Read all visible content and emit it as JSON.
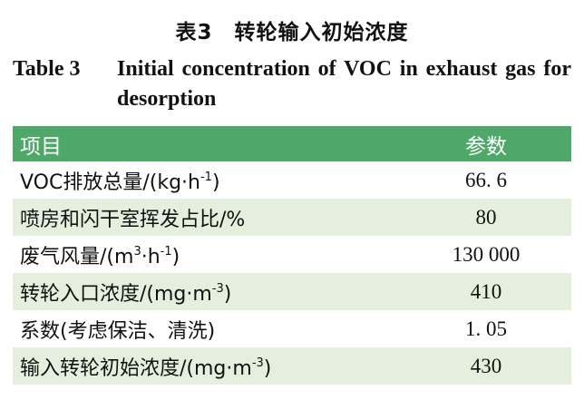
{
  "caption": {
    "cn": "表3　转轮输入初始浓度",
    "en_number": "Table 3",
    "en_title": "Initial concentration of VOC in exhaust gas for desorption"
  },
  "table": {
    "headers": [
      "项目",
      "参数"
    ],
    "rows": [
      {
        "item": "VOC排放总量/(kg·h",
        "sup": "-1",
        "tail": ")",
        "value": "66. 6"
      },
      {
        "item": "喷房和闪干室挥发占比/%",
        "sup": "",
        "tail": "",
        "value": "80"
      },
      {
        "item": "废气风量/(m",
        "sup": "3",
        "mid": "·h",
        "sup2": "-1",
        "tail": ")",
        "value": "130 000"
      },
      {
        "item": "转轮入口浓度/(mg·m",
        "sup": "-3",
        "tail": ")",
        "value": "410"
      },
      {
        "item": "系数(考虑保洁、清洗)",
        "sup": "",
        "tail": "",
        "value": "1. 05"
      },
      {
        "item": "输入转轮初始浓度/(mg·m",
        "sup": "-3",
        "tail": ")",
        "value": "430"
      }
    ]
  }
}
